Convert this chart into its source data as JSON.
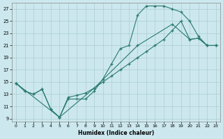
{
  "xlabel": "Humidex (Indice chaleur)",
  "bg_color": "#cce8ee",
  "grid_color": "#aaccd4",
  "line_color": "#2a7a6e",
  "xmin": -0.5,
  "xmax": 23.5,
  "ymin": 8.5,
  "ymax": 28.0,
  "yticks": [
    9,
    11,
    13,
    15,
    17,
    19,
    21,
    23,
    25,
    27
  ],
  "xticks": [
    0,
    1,
    2,
    3,
    4,
    5,
    6,
    7,
    8,
    9,
    10,
    11,
    12,
    13,
    14,
    15,
    16,
    17,
    18,
    19,
    20,
    21,
    22,
    23
  ],
  "line1_x": [
    0,
    1,
    2,
    3,
    4,
    5,
    6,
    7,
    8,
    9,
    10,
    11,
    12,
    13,
    14,
    15,
    16,
    17,
    18,
    19,
    20,
    21,
    22,
    23
  ],
  "line1_y": [
    14.8,
    13.5,
    13.0,
    13.8,
    10.5,
    9.2,
    12.2,
    12.2,
    12.2,
    13.5,
    15.5,
    18.0,
    20.5,
    21.0,
    26.0,
    27.5,
    27.5,
    27.5,
    27.0,
    26.5,
    25.0,
    22.5,
    21.0,
    21.0
  ],
  "line2_x": [
    0,
    1,
    2,
    3,
    4,
    5,
    6,
    7,
    8,
    9,
    10,
    11,
    12,
    13,
    14,
    15,
    16,
    17,
    18,
    19,
    20,
    21,
    22,
    23
  ],
  "line2_y": [
    14.8,
    13.5,
    13.0,
    13.8,
    10.5,
    9.2,
    12.5,
    12.8,
    13.2,
    14.0,
    15.0,
    16.0,
    17.0,
    18.0,
    19.0,
    20.0,
    21.0,
    22.0,
    23.5,
    25.0,
    22.0,
    22.2,
    21.0,
    21.0
  ],
  "line3_x": [
    0,
    5,
    9,
    14,
    18,
    20,
    21,
    22,
    23
  ],
  "line3_y": [
    14.8,
    9.2,
    14.0,
    21.0,
    24.5,
    22.0,
    22.2,
    21.0,
    21.0
  ]
}
